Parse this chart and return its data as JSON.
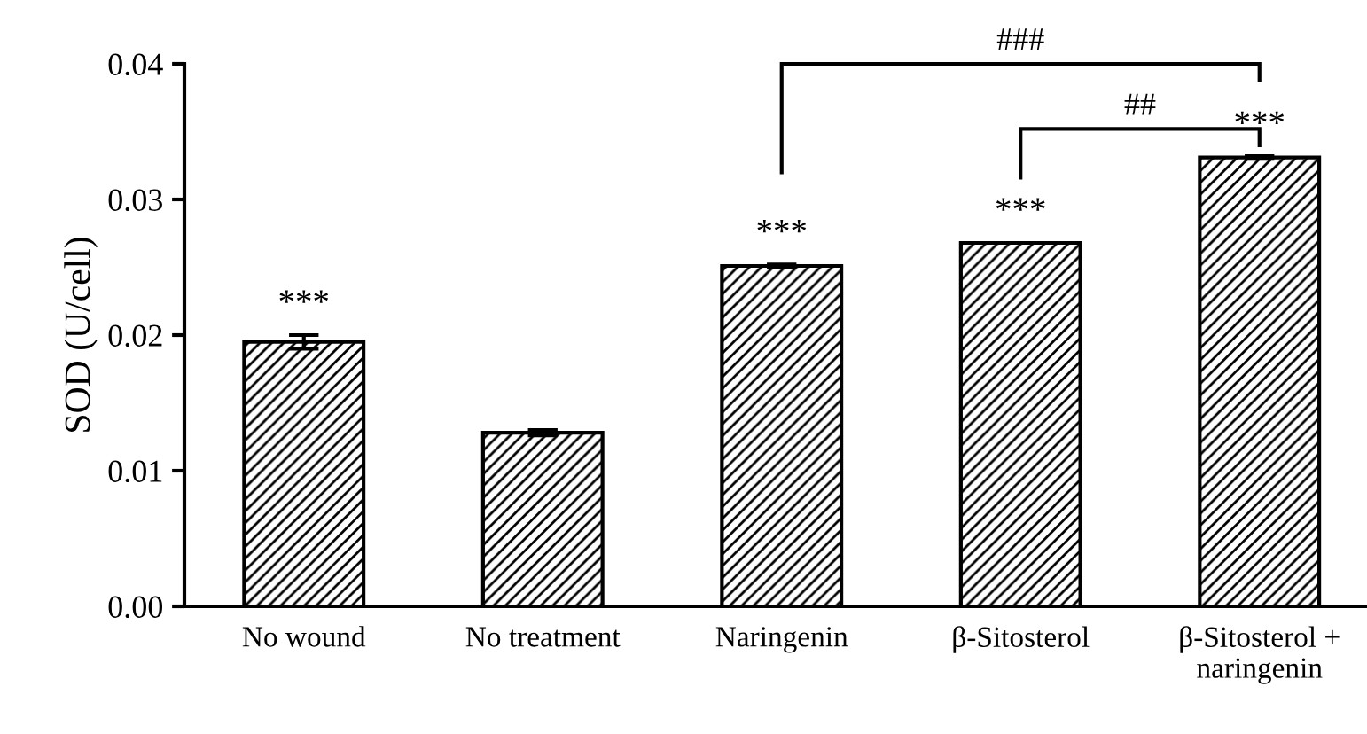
{
  "chart_data": {
    "type": "bar",
    "ylabel": "SOD (U/cell)",
    "categories": [
      "No wound",
      "No treatment",
      "Naringenin",
      "β-Sitosterol",
      "β-Sitosterol +\nnaringenin"
    ],
    "values": [
      0.0195,
      0.0128,
      0.0251,
      0.0268,
      0.0331
    ],
    "errors": [
      0.0005,
      0.0002,
      0.0001,
      null,
      0.0001
    ],
    "color": "#000000",
    "ylim": [
      0,
      0.04
    ],
    "yticks": [
      {
        "value": 0,
        "label": "0.00"
      },
      {
        "value": 0.01,
        "label": "0.01"
      },
      {
        "value": 0.02,
        "label": "0.02"
      },
      {
        "value": 0.03,
        "label": "0.03"
      },
      {
        "value": 0.04,
        "label": "0.04"
      }
    ],
    "grid": false,
    "legend": false,
    "annotations": [
      {
        "text": "***",
        "x": "No wound",
        "y": 0.02
      },
      {
        "text": "***",
        "x": "Naringenin",
        "y": 0.0252
      },
      {
        "text": "***",
        "x": "β-Sitosterol",
        "y": 0.0268
      },
      {
        "text": "***",
        "x": "β-Sitosterol +\nnaringenin",
        "y": 0.0332
      },
      "##",
      "###"
    ]
  }
}
